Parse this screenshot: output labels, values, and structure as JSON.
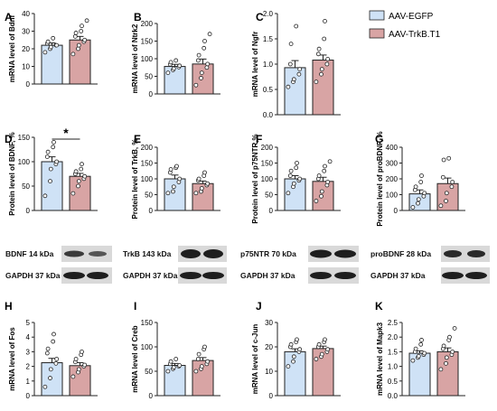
{
  "colors": {
    "egfp_fill": "#cfe2f6",
    "trkb_fill": "#d8a4a4",
    "axis": "#222222"
  },
  "legend": [
    {
      "name": "AAV-EGFP",
      "color": "#cfe2f6"
    },
    {
      "name": "AAV-TrkB.T1",
      "color": "#d8a4a4"
    }
  ],
  "chart_data": [
    {
      "type": "bar",
      "letter": "A",
      "ylabel": "mRNA level of Bdnf",
      "ylim": [
        0,
        40
      ],
      "yticks": [
        0,
        10,
        20,
        30,
        40
      ],
      "categories": [
        "AAV-EGFP",
        "AAV-TrkB.T1"
      ],
      "series": [
        {
          "name": "AAV-EGFP",
          "mean": 22,
          "sem": 1.3,
          "points": [
            18,
            20,
            21,
            22,
            22,
            23,
            24,
            26
          ]
        },
        {
          "name": "AAV-TrkB.T1",
          "mean": 25,
          "sem": 2,
          "points": [
            17,
            20,
            22,
            24,
            25,
            27,
            29,
            30,
            33,
            36
          ]
        }
      ]
    },
    {
      "type": "bar",
      "letter": "B",
      "ylabel": "mRNA level of Ntrk2",
      "ylim": [
        0,
        200
      ],
      "yticks": [
        0,
        50,
        100,
        150,
        200
      ],
      "categories": [
        "AAV-EGFP",
        "AAV-TrkB.T1"
      ],
      "series": [
        {
          "name": "AAV-EGFP",
          "mean": 78,
          "sem": 6,
          "points": [
            60,
            68,
            72,
            76,
            80,
            84,
            90,
            95
          ]
        },
        {
          "name": "AAV-TrkB.T1",
          "mean": 85,
          "sem": 14,
          "points": [
            25,
            45,
            60,
            75,
            85,
            95,
            110,
            130,
            150,
            170
          ]
        }
      ]
    },
    {
      "type": "bar",
      "letter": "C",
      "ylabel": "mRNA level of Ngfr",
      "ylim": [
        0,
        2.0
      ],
      "yticks": [
        0,
        0.5,
        1.0,
        1.5,
        2.0
      ],
      "categories": [
        "AAV-EGFP",
        "AAV-TrkB.T1"
      ],
      "series": [
        {
          "name": "AAV-EGFP",
          "mean": 0.93,
          "sem": 0.14,
          "points": [
            0.55,
            0.65,
            0.7,
            0.8,
            0.9,
            1.0,
            1.4,
            1.75
          ]
        },
        {
          "name": "AAV-TrkB.T1",
          "mean": 1.08,
          "sem": 0.1,
          "points": [
            0.65,
            0.8,
            0.9,
            1.0,
            1.1,
            1.2,
            1.3,
            1.5,
            1.85
          ]
        }
      ]
    },
    {
      "type": "bar",
      "letter": "D",
      "ylabel": "Protein level of BDNF, %",
      "ylim": [
        0,
        150
      ],
      "yticks": [
        0,
        50,
        100,
        150
      ],
      "categories": [
        "AAV-EGFP",
        "AAV-TrkB.T1"
      ],
      "significance": "*",
      "series": [
        {
          "name": "AAV-EGFP",
          "mean": 100,
          "sem": 10,
          "points": [
            30,
            60,
            85,
            95,
            100,
            110,
            120,
            130,
            140
          ]
        },
        {
          "name": "AAV-TrkB.T1",
          "mean": 70,
          "sem": 6,
          "points": [
            35,
            50,
            60,
            65,
            70,
            75,
            80,
            85,
            95
          ]
        }
      ]
    },
    {
      "type": "bar",
      "letter": "E",
      "ylabel": "Protein level of TrkB, %",
      "ylim": [
        0,
        200
      ],
      "yticks": [
        0,
        50,
        100,
        150,
        200
      ],
      "categories": [
        "AAV-EGFP",
        "AAV-TrkB.T1"
      ],
      "series": [
        {
          "name": "AAV-EGFP",
          "mean": 100,
          "sem": 12,
          "points": [
            55,
            60,
            75,
            90,
            100,
            120,
            130,
            135,
            140
          ]
        },
        {
          "name": "AAV-TrkB.T1",
          "mean": 85,
          "sem": 8,
          "points": [
            55,
            60,
            70,
            80,
            85,
            95,
            100,
            110,
            120
          ]
        }
      ]
    },
    {
      "type": "bar",
      "letter": "F",
      "ylabel": "Protein level of p75NTR,%",
      "ylim": [
        0,
        200
      ],
      "yticks": [
        0,
        50,
        100,
        150,
        200
      ],
      "categories": [
        "AAV-EGFP",
        "AAV-TrkB.T1"
      ],
      "series": [
        {
          "name": "AAV-EGFP",
          "mean": 100,
          "sem": 10,
          "points": [
            55,
            75,
            85,
            95,
            100,
            110,
            125,
            135,
            150
          ]
        },
        {
          "name": "AAV-TrkB.T1",
          "mean": 92,
          "sem": 13,
          "points": [
            30,
            45,
            60,
            80,
            90,
            100,
            110,
            125,
            140,
            155
          ]
        }
      ]
    },
    {
      "type": "bar",
      "letter": "G",
      "ylabel": "Protein level of proBDNF, %",
      "ylim": [
        0,
        400
      ],
      "yticks": [
        0,
        100,
        200,
        300,
        400
      ],
      "categories": [
        "AAV-EGFP",
        "AAV-TrkB.T1"
      ],
      "series": [
        {
          "name": "AAV-EGFP",
          "mean": 105,
          "sem": 25,
          "points": [
            20,
            45,
            70,
            90,
            110,
            130,
            150,
            180,
            220
          ]
        },
        {
          "name": "AAV-TrkB.T1",
          "mean": 170,
          "sem": 35,
          "points": [
            30,
            60,
            110,
            150,
            180,
            210,
            320,
            330
          ]
        }
      ]
    },
    {
      "type": "bar",
      "letter": "H",
      "ylabel": "mRNA level of Fos",
      "ylim": [
        0,
        5
      ],
      "yticks": [
        0,
        1,
        2,
        3,
        4,
        5
      ],
      "categories": [
        "AAV-EGFP",
        "AAV-TrkB.T1"
      ],
      "series": [
        {
          "name": "AAV-EGFP",
          "mean": 2.25,
          "sem": 0.3,
          "points": [
            0.6,
            1.2,
            1.8,
            2.2,
            2.5,
            2.9,
            3.2,
            3.7,
            4.2
          ]
        },
        {
          "name": "AAV-TrkB.T1",
          "mean": 2.05,
          "sem": 0.2,
          "points": [
            1.3,
            1.6,
            1.8,
            2.0,
            2.1,
            2.3,
            2.5,
            2.8,
            3.0
          ]
        }
      ]
    },
    {
      "type": "bar",
      "letter": "I",
      "ylabel": "mRNA level of Creb",
      "ylim": [
        0,
        150
      ],
      "yticks": [
        0,
        50,
        100,
        150
      ],
      "categories": [
        "AAV-EGFP",
        "AAV-TrkB.T1"
      ],
      "series": [
        {
          "name": "AAV-EGFP",
          "mean": 62,
          "sem": 4,
          "points": [
            50,
            55,
            58,
            60,
            62,
            65,
            70,
            75
          ]
        },
        {
          "name": "AAV-TrkB.T1",
          "mean": 72,
          "sem": 6,
          "points": [
            50,
            55,
            60,
            65,
            70,
            75,
            85,
            95,
            100
          ]
        }
      ]
    },
    {
      "type": "bar",
      "letter": "J",
      "ylabel": "mRNA level of c-Jun",
      "ylim": [
        0,
        30
      ],
      "yticks": [
        0,
        10,
        20,
        30
      ],
      "categories": [
        "AAV-EGFP",
        "AAV-TrkB.T1"
      ],
      "series": [
        {
          "name": "AAV-EGFP",
          "mean": 18,
          "sem": 1.2,
          "points": [
            12,
            14,
            16,
            18,
            19,
            20,
            21,
            22,
            23
          ]
        },
        {
          "name": "AAV-TrkB.T1",
          "mean": 19.3,
          "sem": 1,
          "points": [
            15,
            16,
            17,
            18,
            19,
            20,
            21,
            22,
            23
          ]
        }
      ]
    },
    {
      "type": "bar",
      "letter": "K",
      "ylabel": "mRNA level of Mapk3",
      "ylim": [
        0,
        2.5
      ],
      "yticks": [
        0,
        0.5,
        1.0,
        1.5,
        2.0,
        2.5
      ],
      "categories": [
        "AAV-EGFP",
        "AAV-TrkB.T1"
      ],
      "series": [
        {
          "name": "AAV-EGFP",
          "mean": 1.45,
          "sem": 0.08,
          "points": [
            1.2,
            1.3,
            1.35,
            1.4,
            1.45,
            1.5,
            1.6,
            1.75,
            1.9
          ]
        },
        {
          "name": "AAV-TrkB.T1",
          "mean": 1.5,
          "sem": 0.13,
          "points": [
            0.9,
            1.1,
            1.3,
            1.4,
            1.5,
            1.6,
            1.7,
            1.9,
            2.0,
            2.3
          ]
        }
      ]
    }
  ],
  "blots": [
    {
      "top": "BDNF 14 kDa",
      "bottom": "GAPDH 37 kDa"
    },
    {
      "top": "TrkB 143 kDa",
      "bottom": "GAPDH 37 kDa"
    },
    {
      "top": "p75NTR 70 kDa",
      "bottom": "GAPDH 37 kDa"
    },
    {
      "top": "proBDNF 28 kDa",
      "bottom": "GAPDH 37 kDa"
    }
  ]
}
